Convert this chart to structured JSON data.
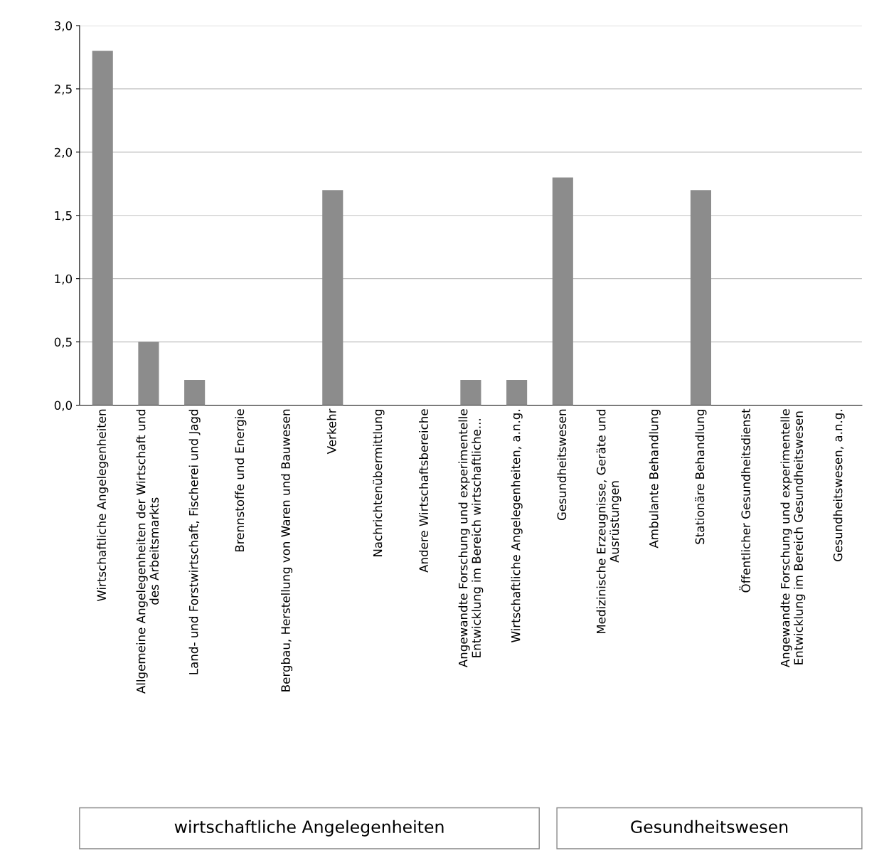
{
  "chart_data": {
    "type": "bar",
    "categories": [
      "Wirtschaftliche Angelegenheiten",
      "Allgemeine Angelegenheiten der Wirtschaft und\ndes Arbeitsmarkts",
      "Land- und Forstwirtschaft, Fischerei und Jagd",
      "Brennstoffe und Energie",
      "Bergbau, Herstellung von Waren und Bauwesen",
      "Verkehr",
      "Nachrichtenübermittlung",
      "Andere Wirtschaftsbereiche",
      "Angewandte Forschung und experimentelle\nEntwicklung im Bereich wirtschaftliche...",
      "Wirtschaftliche Angelegenheiten, a.n.g.",
      "Gesundheitswesen",
      "Medizinische Erzeugnisse, Geräte und\nAusrüstungen",
      "Ambulante Behandlung",
      "Stationäre Behandlung",
      "Öffentlicher Gesundheitsdienst",
      "Angewandte Forschung und experimentelle\nEntwicklung im Bereich Gesundheitswesen",
      "Gesundheitswesen, a.n.g."
    ],
    "values": [
      2.8,
      0.5,
      0.2,
      0,
      0,
      1.7,
      0,
      0,
      0.2,
      0.2,
      1.8,
      0,
      0,
      1.7,
      0,
      0,
      0
    ],
    "color": "#8c8c8c",
    "ylim": [
      0,
      3.0
    ],
    "yticks": [
      {
        "value": 0,
        "label": "0,0"
      },
      {
        "value": 0.5,
        "label": "0,5"
      },
      {
        "value": 1.0,
        "label": "1,0"
      },
      {
        "value": 1.5,
        "label": "1,5"
      },
      {
        "value": 2.0,
        "label": "2,0"
      },
      {
        "value": 2.5,
        "label": "2,5"
      },
      {
        "value": 3.0,
        "label": "3,0"
      }
    ],
    "grid": "y",
    "annotations": [
      "wirtschaftliche Angelegenheiten",
      "Gesundheitswesen"
    ]
  }
}
